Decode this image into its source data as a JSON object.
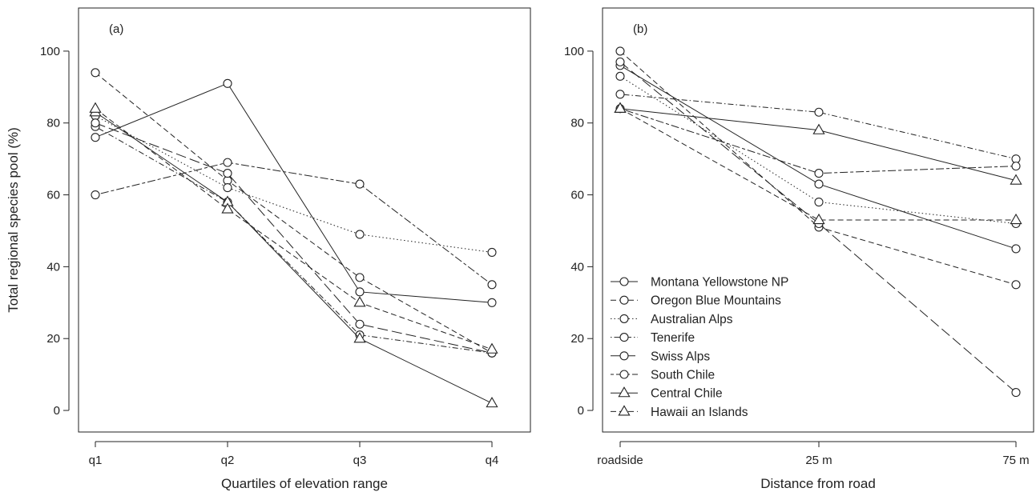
{
  "chart_data": [
    {
      "type": "line",
      "panel_label": "(a)",
      "xlabel": "Quartiles of elevation range",
      "ylabel": "Total regional species pool (%)",
      "categories": [
        "q1",
        "q2",
        "q3",
        "q4"
      ],
      "ylim": [
        -6,
        112
      ],
      "yticks": [
        0,
        20,
        40,
        60,
        80,
        100
      ],
      "grid": false,
      "series": [
        {
          "name": "Montana Yellowstone NP",
          "values": [
            76,
            91,
            33,
            30
          ]
        },
        {
          "name": "Oregon Blue Mountains",
          "values": [
            94,
            64,
            37,
            16
          ]
        },
        {
          "name": "Australian Alps",
          "values": [
            82,
            62,
            49,
            44
          ]
        },
        {
          "name": "Tenerife",
          "values": [
            79,
            58,
            21,
            16
          ]
        },
        {
          "name": "Swiss Alps",
          "values": [
            80,
            66,
            24,
            16
          ]
        },
        {
          "name": "South Chile",
          "values": [
            60,
            69,
            63,
            35
          ]
        },
        {
          "name": "Central Chile",
          "values": [
            83,
            58,
            20,
            2
          ]
        },
        {
          "name": "Hawaii an Islands",
          "values": [
            84,
            56,
            30,
            17
          ]
        }
      ]
    },
    {
      "type": "line",
      "panel_label": "(b)",
      "xlabel": "Distance from road",
      "ylabel": "",
      "categories": [
        "roadside",
        "25 m",
        "75 m"
      ],
      "ylim": [
        -6,
        112
      ],
      "yticks": [
        0,
        20,
        40,
        60,
        80,
        100
      ],
      "grid": false,
      "legend_position": "bottom-left",
      "series": [
        {
          "name": "Montana Yellowstone NP",
          "values": [
            96,
            63,
            45
          ]
        },
        {
          "name": "Oregon Blue Mountains",
          "values": [
            100,
            51,
            35
          ]
        },
        {
          "name": "Australian Alps",
          "values": [
            93,
            58,
            52
          ]
        },
        {
          "name": "Tenerife",
          "values": [
            88,
            83,
            70
          ]
        },
        {
          "name": "Swiss Alps",
          "values": [
            97,
            52,
            5
          ]
        },
        {
          "name": "South Chile",
          "values": [
            84,
            66,
            68
          ]
        },
        {
          "name": "Central Chile",
          "values": [
            84,
            78,
            64
          ]
        },
        {
          "name": "Hawaii an Islands",
          "values": [
            84,
            53,
            53
          ]
        }
      ]
    }
  ],
  "legend": {
    "entries": [
      {
        "label": "Montana Yellowstone NP",
        "marker": "circle",
        "dash": "solid"
      },
      {
        "label": "Oregon Blue Mountains",
        "marker": "circle",
        "dash": "dashed"
      },
      {
        "label": "Australian Alps",
        "marker": "circle",
        "dash": "dotted"
      },
      {
        "label": "Tenerife",
        "marker": "circle",
        "dash": "dotdash"
      },
      {
        "label": "Swiss Alps",
        "marker": "circle",
        "dash": "longdash"
      },
      {
        "label": "South Chile",
        "marker": "circle",
        "dash": "twodash"
      },
      {
        "label": "Central Chile",
        "marker": "triangle",
        "dash": "solid"
      },
      {
        "label": "Hawaii an Islands",
        "marker": "triangle",
        "dash": "dashed"
      }
    ]
  },
  "colors": {
    "ink": "#222222",
    "background": "#ffffff"
  }
}
